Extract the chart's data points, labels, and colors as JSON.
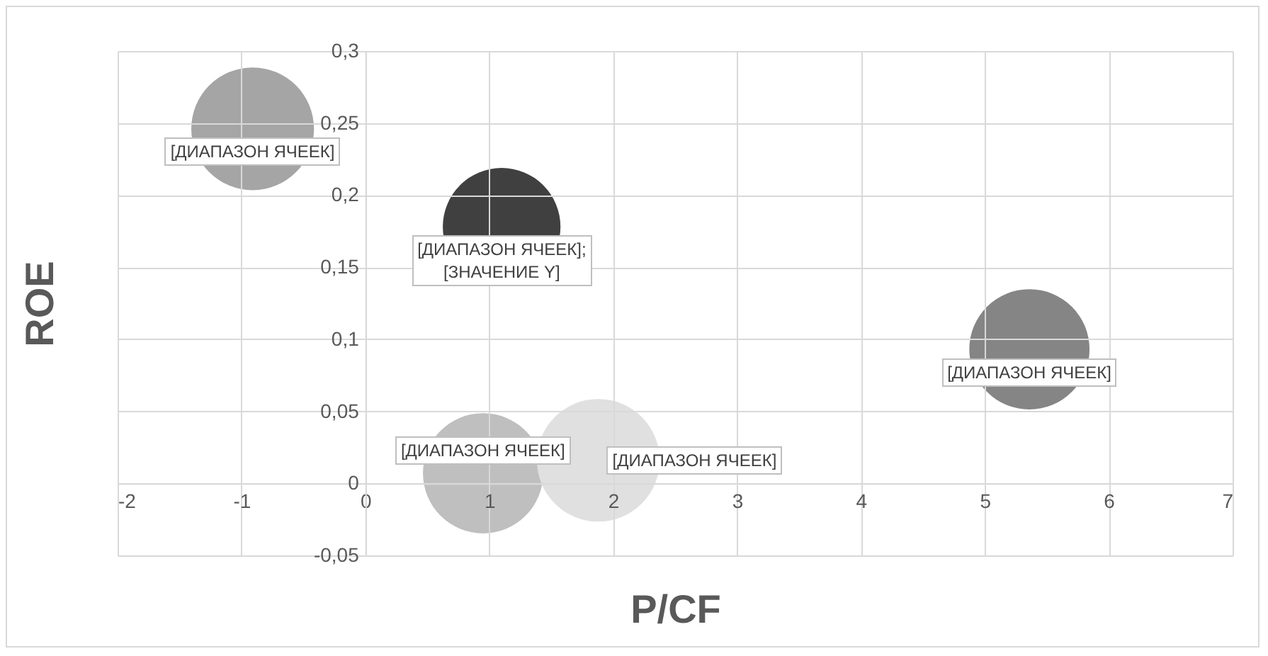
{
  "chart_data": {
    "type": "bubble",
    "xlabel": "P/CF",
    "ylabel": "ROE",
    "x": [
      -0.91,
      1.1,
      5.36,
      0.95,
      1.88
    ],
    "values": [
      0.246,
      0.178,
      0.093,
      0.007,
      0.016
    ],
    "sizes": [
      1,
      0.92,
      0.96,
      0.96,
      1
    ],
    "colors": [
      "#a5a5a5",
      "#404040",
      "#858585",
      "#bfbfbf",
      "#e0e0e0"
    ],
    "xlim": [
      -2,
      7
    ],
    "xticks": [
      -2,
      -1,
      0,
      1,
      2,
      3,
      4,
      5,
      6,
      7
    ],
    "ylim": [
      -0.05,
      0.3
    ],
    "yticks": [
      {
        "value": -0.05,
        "label": "-0,05"
      },
      {
        "value": 0,
        "label": "0"
      },
      {
        "value": 0.05,
        "label": "0,05"
      },
      {
        "value": 0.1,
        "label": "0,1"
      },
      {
        "value": 0.15,
        "label": "0,15"
      },
      {
        "value": 0.2,
        "label": "0,2"
      },
      {
        "value": 0.25,
        "label": "0,25"
      },
      {
        "value": 0.3,
        "label": "0,3"
      }
    ],
    "grid": true,
    "legend": false,
    "annotations": [
      {
        "text": "[ДИАПАЗОН ЯЧЕЕК]",
        "x": -0.91,
        "y": 0.246
      },
      {
        "text": "[ДИАПАЗОН ЯЧЕЕК];\n[ЗНАЧЕНИЕ Y]",
        "x": 1.1,
        "y": 0.178
      },
      {
        "text": "[ДИАПАЗОН ЯЧЕЕК]",
        "x": 5.36,
        "y": 0.093
      },
      {
        "text": "[ДИАПАЗОН ЯЧЕЕК]",
        "x": 0.95,
        "y": 0.007
      },
      {
        "text": "[ДИАПАЗОН ЯЧЕЕК]",
        "x": 1.88,
        "y": 0.016
      }
    ]
  }
}
